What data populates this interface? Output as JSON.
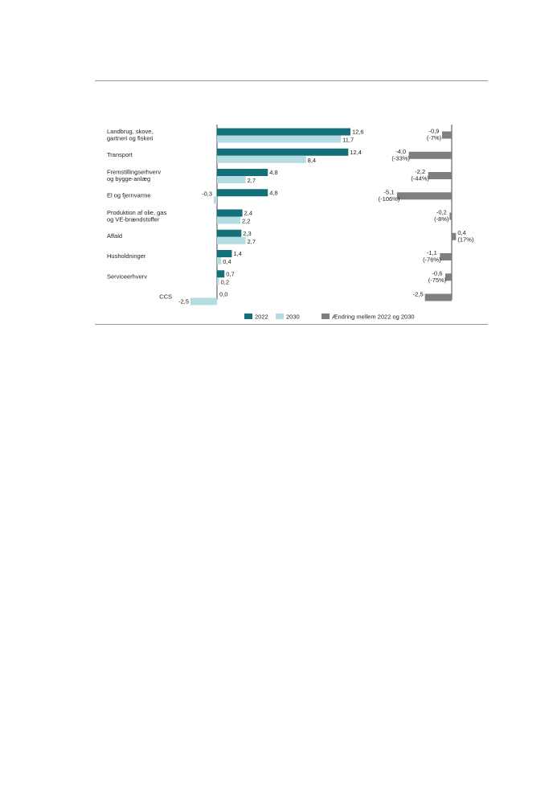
{
  "colors": {
    "series_2022": "#13707a",
    "series_2030": "#b3dde0",
    "change": "#7f7f7f",
    "axis": "#444444",
    "rule": "#999999"
  },
  "legend": {
    "placement": "bottom-center",
    "items": [
      "2022",
      "2030",
      "Ændring mellem 2022 og 2030"
    ]
  },
  "chart_data": [
    {
      "type": "bar",
      "orientation": "horizontal",
      "categories": [
        [
          "Landbrug, skove,",
          "gartneri og fiskeri"
        ],
        [
          "Transport"
        ],
        [
          "Fremstillingserhverv",
          "og bygge-anlæg"
        ],
        [
          "El og fjernvarme"
        ],
        [
          "Produktion af olie, gas",
          "og VE-brændstoffer"
        ],
        [
          "Affald"
        ],
        [
          "Husholdninger"
        ],
        [
          "Serviceerhverv"
        ],
        [
          "CCS"
        ]
      ],
      "series": [
        {
          "name": "2022",
          "values": [
            12.6,
            12.4,
            4.8,
            4.8,
            2.4,
            2.3,
            1.4,
            0.7,
            0.0
          ],
          "labels": [
            "12,6",
            "12,4",
            "4,8",
            "4,8",
            "2,4",
            "2,3",
            "1,4",
            "0,7",
            "0,0"
          ]
        },
        {
          "name": "2030",
          "values": [
            11.7,
            8.4,
            2.7,
            -0.3,
            2.2,
            2.7,
            0.4,
            0.2,
            -2.5
          ],
          "labels": [
            "11,7",
            "8,4",
            "2,7",
            "-0,3",
            "2,2",
            "2,7",
            "0,4",
            "0,2",
            "-2,5"
          ]
        }
      ],
      "xlim": [
        -2.5,
        12.6
      ],
      "grid": false
    },
    {
      "type": "bar",
      "orientation": "horizontal",
      "series": [
        {
          "name": "Ændring mellem 2022 og 2030",
          "values": [
            -0.9,
            -4.0,
            -2.2,
            -5.1,
            -0.2,
            0.4,
            -1.1,
            -0.6,
            -2.5
          ],
          "labels": [
            "-0,9",
            "-4,0",
            "-2,2",
            "-5,1",
            "-0,2",
            "0,4",
            "-1,1",
            "-0,6",
            "-2,5"
          ],
          "pct_labels": [
            "(-7%)",
            "(-33%)",
            "(-44%)",
            "(-106%)",
            "(-8%)",
            "(17%)",
            "(-76%)",
            "(-75%)",
            ""
          ]
        }
      ],
      "xlim": [
        -5.1,
        0.4
      ],
      "grid": false
    }
  ]
}
